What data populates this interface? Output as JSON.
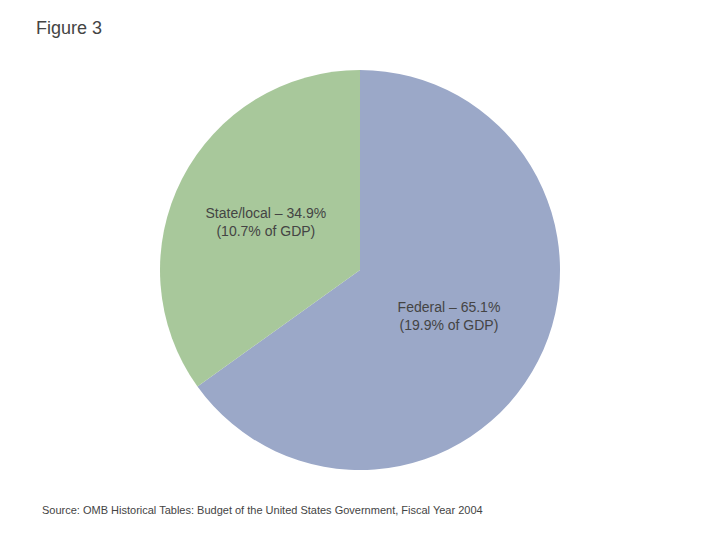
{
  "chart_data": {
    "type": "pie",
    "title": "Figure 3",
    "values": [
      65.1,
      34.9
    ],
    "value_labels": [
      "Federal – 65.1%\n(19.9% of GDP)",
      "State/local – 34.9%\n(10.7% of GDP)"
    ],
    "colors": [
      "#9BA8C8",
      "#A8C89B"
    ],
    "data_labels": true,
    "annotations": [
      {
        "text": "Source: OMB Historical Tables: Budget of the United States Government, Fiscal Year 2004"
      }
    ]
  }
}
